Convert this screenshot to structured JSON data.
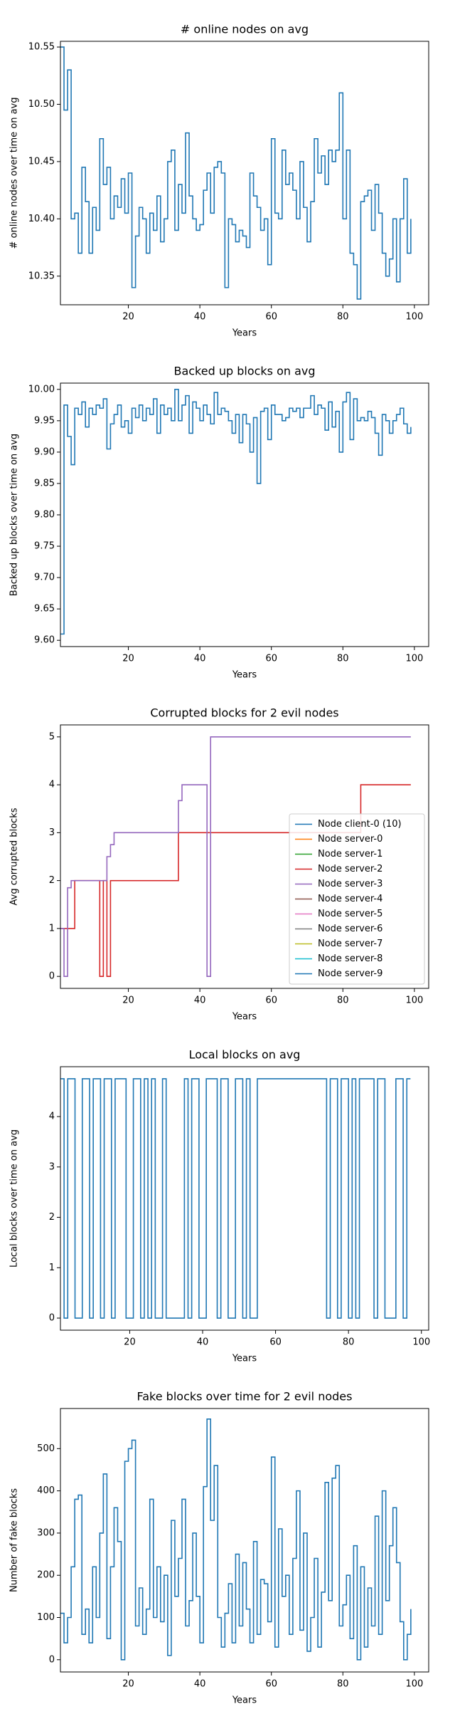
{
  "chart_data": [
    {
      "type": "line",
      "title": "# online nodes on avg",
      "x_label": "Years",
      "y_label": "# online nodes over time on avg",
      "color": "#1f77b4",
      "x": [
        1,
        2,
        3,
        4,
        5,
        6,
        7,
        8,
        9,
        10,
        11,
        12,
        13,
        14,
        15,
        16,
        17,
        18,
        19,
        20,
        21,
        22,
        23,
        24,
        25,
        26,
        27,
        28,
        29,
        30,
        31,
        32,
        33,
        34,
        35,
        36,
        37,
        38,
        39,
        40,
        41,
        42,
        43,
        44,
        45,
        46,
        47,
        48,
        49,
        50,
        51,
        52,
        53,
        54,
        55,
        56,
        57,
        58,
        59,
        60,
        61,
        62,
        63,
        64,
        65,
        66,
        67,
        68,
        69,
        70,
        71,
        72,
        73,
        74,
        75,
        76,
        77,
        78,
        79,
        80,
        81,
        82,
        83,
        84,
        85,
        86,
        87,
        88,
        89,
        90,
        91,
        92,
        93,
        94,
        95,
        96,
        97,
        98,
        99
      ],
      "values": [
        10.55,
        10.495,
        10.53,
        10.4,
        10.405,
        10.37,
        10.445,
        10.415,
        10.37,
        10.41,
        10.39,
        10.47,
        10.43,
        10.445,
        10.4,
        10.42,
        10.41,
        10.435,
        10.405,
        10.44,
        10.34,
        10.385,
        10.41,
        10.4,
        10.37,
        10.405,
        10.39,
        10.42,
        10.38,
        10.4,
        10.45,
        10.46,
        10.39,
        10.43,
        10.405,
        10.475,
        10.42,
        10.4,
        10.39,
        10.395,
        10.425,
        10.44,
        10.405,
        10.445,
        10.45,
        10.44,
        10.34,
        10.4,
        10.395,
        10.38,
        10.39,
        10.385,
        10.375,
        10.44,
        10.42,
        10.41,
        10.39,
        10.4,
        10.36,
        10.47,
        10.405,
        10.4,
        10.46,
        10.43,
        10.44,
        10.425,
        10.4,
        10.45,
        10.41,
        10.38,
        10.415,
        10.47,
        10.44,
        10.455,
        10.43,
        10.46,
        10.45,
        10.46,
        10.51,
        10.4,
        10.46,
        10.37,
        10.36,
        10.33,
        10.415,
        10.42,
        10.425,
        10.39,
        10.43,
        10.405,
        10.37,
        10.35,
        10.365,
        10.4,
        10.345,
        10.4,
        10.435,
        10.37,
        10.4
      ],
      "xlim": [
        1,
        104
      ],
      "xticks": [
        20,
        40,
        60,
        80,
        100
      ],
      "ylim": [
        10.325,
        10.555
      ],
      "yticks": [
        {
          "value": 10.35,
          "label": "10.35"
        },
        {
          "value": 10.4,
          "label": "10.40"
        },
        {
          "value": 10.45,
          "label": "10.45"
        },
        {
          "value": 10.5,
          "label": "10.50"
        },
        {
          "value": 10.55,
          "label": "10.55"
        }
      ]
    },
    {
      "type": "line",
      "title": "Backed up blocks on avg",
      "x_label": "Years",
      "y_label": "Backed up blocks over time on avg",
      "color": "#1f77b4",
      "x": [
        1,
        2,
        3,
        4,
        5,
        6,
        7,
        8,
        9,
        10,
        11,
        12,
        13,
        14,
        15,
        16,
        17,
        18,
        19,
        20,
        21,
        22,
        23,
        24,
        25,
        26,
        27,
        28,
        29,
        30,
        31,
        32,
        33,
        34,
        35,
        36,
        37,
        38,
        39,
        40,
        41,
        42,
        43,
        44,
        45,
        46,
        47,
        48,
        49,
        50,
        51,
        52,
        53,
        54,
        55,
        56,
        57,
        58,
        59,
        60,
        61,
        62,
        63,
        64,
        65,
        66,
        67,
        68,
        69,
        70,
        71,
        72,
        73,
        74,
        75,
        76,
        77,
        78,
        79,
        80,
        81,
        82,
        83,
        84,
        85,
        86,
        87,
        88,
        89,
        90,
        91,
        92,
        93,
        94,
        95,
        96,
        97,
        98,
        99
      ],
      "values": [
        9.61,
        9.975,
        9.925,
        9.88,
        9.97,
        9.96,
        9.98,
        9.94,
        9.97,
        9.96,
        9.975,
        9.97,
        9.985,
        9.905,
        9.945,
        9.96,
        9.975,
        9.94,
        9.95,
        9.93,
        9.97,
        9.955,
        9.975,
        9.95,
        9.97,
        9.96,
        9.985,
        9.93,
        9.975,
        9.96,
        9.97,
        9.95,
        10.0,
        9.95,
        9.975,
        9.99,
        9.93,
        9.98,
        9.97,
        9.95,
        9.975,
        9.96,
        9.945,
        9.995,
        9.96,
        9.97,
        9.965,
        9.95,
        9.93,
        9.96,
        9.915,
        9.96,
        9.945,
        9.9,
        9.955,
        9.85,
        9.965,
        9.97,
        9.92,
        9.975,
        9.96,
        9.96,
        9.95,
        9.955,
        9.97,
        9.965,
        9.97,
        9.955,
        9.97,
        9.97,
        9.99,
        9.96,
        9.975,
        9.97,
        9.935,
        9.98,
        9.94,
        9.965,
        9.9,
        9.98,
        9.995,
        9.92,
        9.985,
        9.95,
        9.955,
        9.95,
        9.965,
        9.955,
        9.93,
        9.895,
        9.96,
        9.95,
        9.93,
        9.95,
        9.96,
        9.97,
        9.945,
        9.93,
        9.94
      ],
      "xlim": [
        1,
        104
      ],
      "xticks": [
        20,
        40,
        60,
        80,
        100
      ],
      "ylim": [
        9.59,
        10.01
      ],
      "yticks": [
        {
          "value": 9.6,
          "label": "9.60"
        },
        {
          "value": 9.65,
          "label": "9.65"
        },
        {
          "value": 9.7,
          "label": "9.70"
        },
        {
          "value": 9.75,
          "label": "9.75"
        },
        {
          "value": 9.8,
          "label": "9.80"
        },
        {
          "value": 9.85,
          "label": "9.85"
        },
        {
          "value": 9.9,
          "label": "9.90"
        },
        {
          "value": 9.95,
          "label": "9.95"
        },
        {
          "value": 10.0,
          "label": "10.00"
        }
      ]
    },
    {
      "type": "line",
      "title": "Corrupted blocks for 2 evil nodes",
      "x_label": "Years",
      "y_label": "Avg corrupted blocks",
      "legend": "lower right",
      "series": [
        {
          "name": "Node client-0 (10)",
          "color": "#1f77b4",
          "x": [],
          "values": []
        },
        {
          "name": "Node server-0",
          "color": "#ff7f0e",
          "x": [],
          "values": []
        },
        {
          "name": "Node server-1",
          "color": "#2ca02c",
          "x": [],
          "values": []
        },
        {
          "name": "Node server-2",
          "color": "#d62728",
          "x": [
            1,
            5,
            12,
            13,
            14,
            15,
            34,
            85,
            99
          ],
          "values": [
            1,
            2,
            0,
            2,
            0,
            2,
            3,
            4,
            4
          ]
        },
        {
          "name": "Node server-3",
          "color": "#9467bd",
          "x": [
            1,
            2,
            3,
            4,
            12,
            13,
            14,
            15,
            16,
            34,
            35,
            42,
            43,
            99
          ],
          "values": [
            1,
            0,
            1.85,
            2,
            2,
            2,
            2.5,
            2.75,
            3,
            3.67,
            4,
            0,
            5,
            5
          ]
        },
        {
          "name": "Node server-4",
          "color": "#8c564b",
          "x": [],
          "values": []
        },
        {
          "name": "Node server-5",
          "color": "#e377c2",
          "x": [],
          "values": []
        },
        {
          "name": "Node server-6",
          "color": "#7f7f7f",
          "x": [],
          "values": []
        },
        {
          "name": "Node server-7",
          "color": "#bcbd22",
          "x": [],
          "values": []
        },
        {
          "name": "Node server-8",
          "color": "#17becf",
          "x": [],
          "values": []
        },
        {
          "name": "Node server-9",
          "color": "#1f77b4",
          "x": [],
          "values": []
        }
      ],
      "xlim": [
        1,
        104
      ],
      "xticks": [
        20,
        40,
        60,
        80,
        100
      ],
      "ylim": [
        -0.25,
        5.25
      ],
      "yticks": [
        0,
        1,
        2,
        3,
        4,
        5
      ]
    },
    {
      "type": "line",
      "title": "Local blocks on avg",
      "x_label": "Years",
      "y_label": "Local blocks over time on avg",
      "color": "#1f77b4",
      "x": [
        1,
        2,
        3,
        4,
        5,
        6,
        7,
        8,
        9,
        10,
        11,
        12,
        13,
        14,
        15,
        16,
        17,
        18,
        19,
        20,
        21,
        22,
        23,
        24,
        25,
        26,
        27,
        28,
        29,
        30,
        31,
        32,
        33,
        34,
        35,
        36,
        37,
        38,
        39,
        40,
        41,
        42,
        43,
        44,
        45,
        46,
        47,
        48,
        49,
        50,
        51,
        52,
        53,
        54,
        55,
        56,
        57,
        58,
        59,
        60,
        61,
        62,
        63,
        64,
        65,
        66,
        67,
        68,
        69,
        70,
        71,
        72,
        73,
        74,
        75,
        76,
        77,
        78,
        79,
        80,
        81,
        82,
        83,
        84,
        85,
        86,
        87,
        88,
        89,
        90,
        91,
        92,
        93,
        94,
        95,
        96,
        97
      ],
      "values": [
        4.75,
        0,
        4.75,
        4.75,
        0,
        0,
        4.75,
        4.75,
        0,
        4.75,
        4.75,
        0,
        4.75,
        4.75,
        0,
        4.75,
        4.75,
        4.75,
        0,
        0,
        4.75,
        4.75,
        0,
        4.75,
        0,
        4.75,
        0,
        0,
        4.75,
        0,
        0,
        0,
        0,
        0,
        4.75,
        0,
        4.75,
        4.75,
        0,
        0,
        4.75,
        4.75,
        4.75,
        0,
        4.75,
        4.75,
        0,
        0,
        4.75,
        4.75,
        0,
        4.75,
        0,
        0,
        4.75,
        4.75,
        4.75,
        4.75,
        4.75,
        4.75,
        4.75,
        4.75,
        4.75,
        4.75,
        4.75,
        4.75,
        4.75,
        4.75,
        4.75,
        4.75,
        4.75,
        4.75,
        4.75,
        0,
        4.75,
        4.75,
        0,
        4.75,
        4.75,
        0,
        4.75,
        0,
        4.75,
        4.75,
        4.75,
        4.75,
        0,
        4.75,
        4.75,
        0,
        0,
        0,
        4.75,
        4.75,
        0,
        4.75,
        4.75
      ],
      "xlim": [
        1,
        102
      ],
      "xticks": [
        20,
        40,
        60,
        80,
        100
      ],
      "ylim": [
        -0.24,
        4.99
      ],
      "yticks": [
        0,
        1,
        2,
        3,
        4
      ]
    },
    {
      "type": "line",
      "title": "Fake blocks over time for 2 evil nodes",
      "x_label": "Years",
      "y_label": "Number of fake blocks",
      "color": "#1f77b4",
      "x": [
        1,
        2,
        3,
        4,
        5,
        6,
        7,
        8,
        9,
        10,
        11,
        12,
        13,
        14,
        15,
        16,
        17,
        18,
        19,
        20,
        21,
        22,
        23,
        24,
        25,
        26,
        27,
        28,
        29,
        30,
        31,
        32,
        33,
        34,
        35,
        36,
        37,
        38,
        39,
        40,
        41,
        42,
        43,
        44,
        45,
        46,
        47,
        48,
        49,
        50,
        51,
        52,
        53,
        54,
        55,
        56,
        57,
        58,
        59,
        60,
        61,
        62,
        63,
        64,
        65,
        66,
        67,
        68,
        69,
        70,
        71,
        72,
        73,
        74,
        75,
        76,
        77,
        78,
        79,
        80,
        81,
        82,
        83,
        84,
        85,
        86,
        87,
        88,
        89,
        90,
        91,
        92,
        93,
        94,
        95,
        96,
        97,
        98,
        99
      ],
      "values": [
        110,
        40,
        100,
        220,
        380,
        390,
        60,
        120,
        40,
        220,
        100,
        300,
        440,
        50,
        220,
        360,
        280,
        0,
        470,
        500,
        520,
        80,
        170,
        60,
        120,
        380,
        100,
        220,
        90,
        200,
        10,
        330,
        150,
        240,
        380,
        80,
        140,
        300,
        150,
        40,
        410,
        570,
        330,
        460,
        100,
        30,
        110,
        180,
        40,
        250,
        80,
        230,
        120,
        40,
        280,
        60,
        190,
        180,
        90,
        480,
        30,
        310,
        150,
        200,
        60,
        240,
        400,
        70,
        300,
        20,
        100,
        240,
        30,
        160,
        420,
        140,
        430,
        460,
        80,
        130,
        200,
        50,
        270,
        0,
        220,
        30,
        170,
        80,
        340,
        60,
        400,
        140,
        270,
        360,
        230,
        90,
        0,
        60,
        120
      ],
      "xlim": [
        1,
        104
      ],
      "xticks": [
        20,
        40,
        60,
        80,
        100
      ],
      "ylim": [
        -29,
        595
      ],
      "yticks": [
        0,
        100,
        200,
        300,
        400,
        500
      ]
    }
  ]
}
